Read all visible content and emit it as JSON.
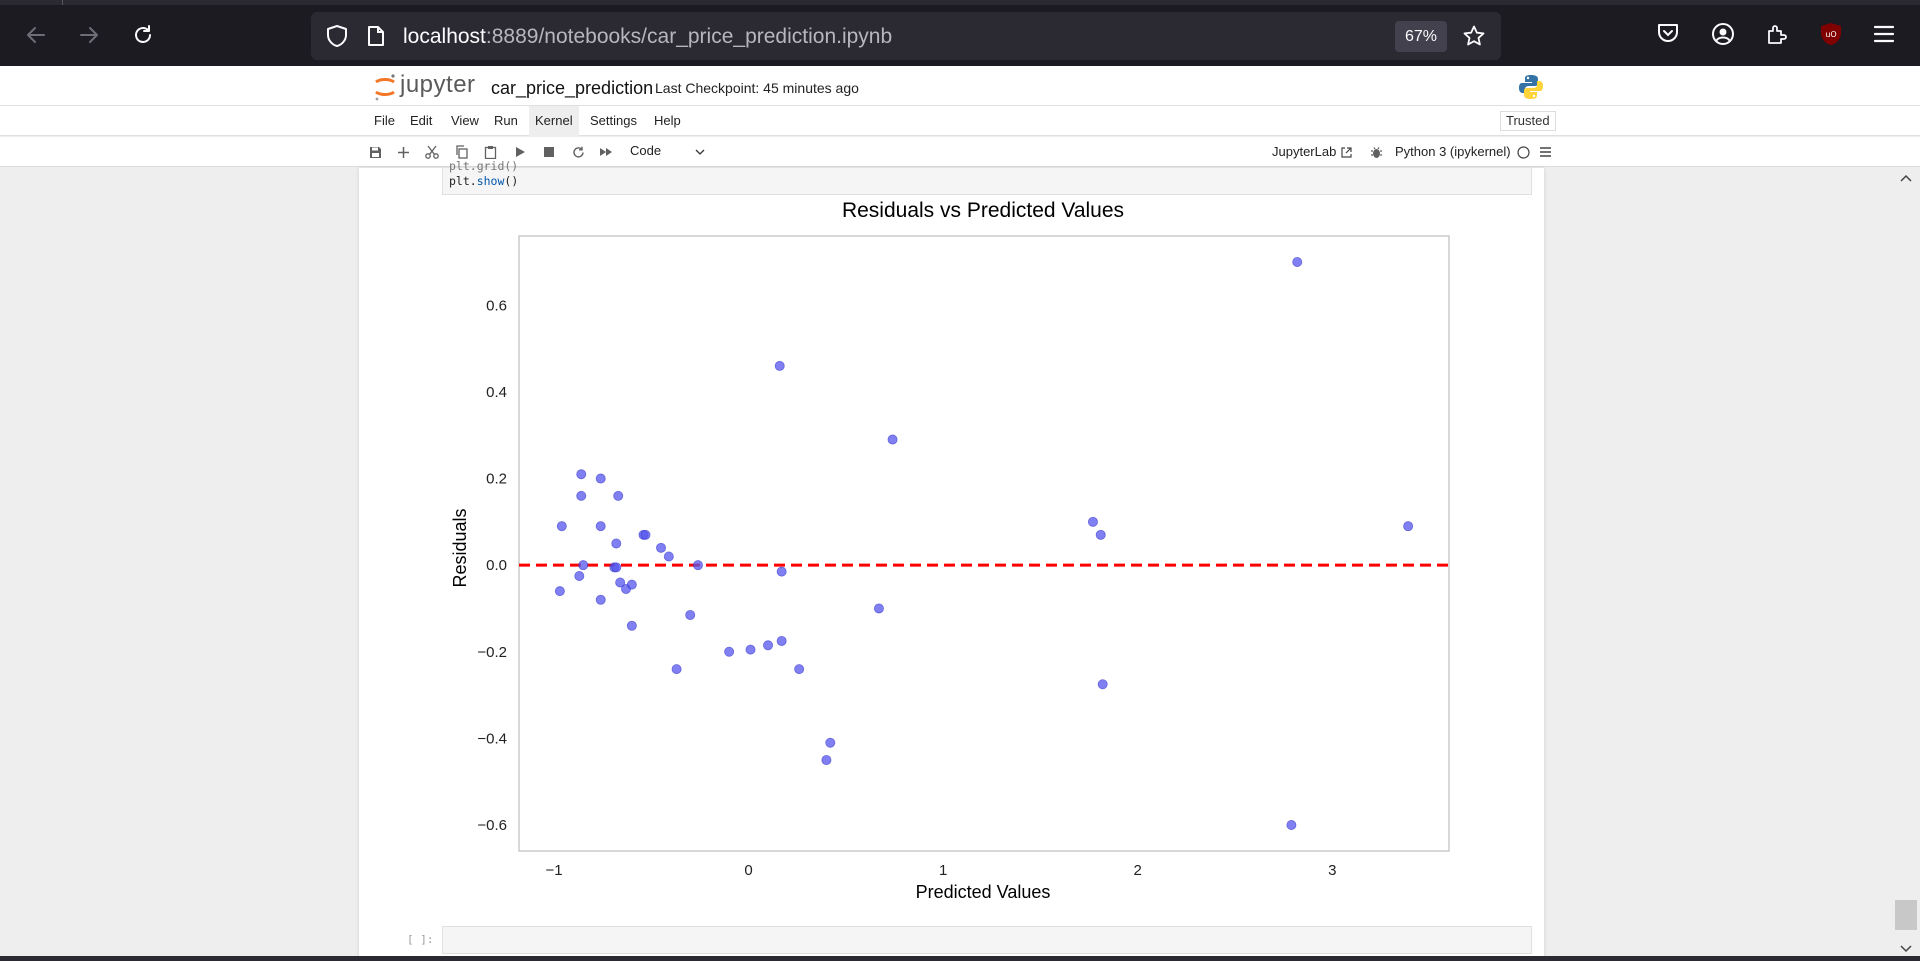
{
  "browser": {
    "url_host": "localhost",
    "url_path": ":8889/notebooks/car_price_prediction.ipynb",
    "zoom": "67%"
  },
  "jupyter": {
    "logo_text": "jupyter",
    "notebook_title": "car_price_prediction",
    "checkpoint": "Last Checkpoint: 45 minutes ago",
    "menu": [
      "File",
      "Edit",
      "View",
      "Run",
      "Kernel",
      "Settings",
      "Help"
    ],
    "active_menu": "Kernel",
    "trusted": "Trusted",
    "cell_type": "Code",
    "jupyterlab_link": "JupyterLab",
    "kernel_name": "Python 3 (ipykernel)"
  },
  "code": {
    "line_partial": "plt.grid()",
    "line_last_obj": "plt.",
    "line_last_fn": "show",
    "line_last_end": "()"
  },
  "empty_prompt": "[ ]:",
  "chart_data": {
    "type": "scatter",
    "title": "Residuals vs Predicted Values",
    "xlabel": "Predicted Values",
    "ylabel": "Residuals",
    "xlim": [
      -1.18,
      3.6
    ],
    "ylim": [
      -0.66,
      0.76
    ],
    "xticks": [
      -1,
      0,
      1,
      2,
      3
    ],
    "yticks": [
      -0.6,
      -0.4,
      -0.2,
      0.0,
      0.2,
      0.4,
      0.6
    ],
    "grid": false,
    "reference_line": {
      "y": 0.0,
      "color": "#ff0000",
      "style": "dashed"
    },
    "point_color": "#5555ee",
    "points": [
      {
        "x": -0.96,
        "y": 0.09
      },
      {
        "x": -0.97,
        "y": -0.06
      },
      {
        "x": -0.86,
        "y": 0.21
      },
      {
        "x": -0.86,
        "y": 0.16
      },
      {
        "x": -0.87,
        "y": -0.025
      },
      {
        "x": -0.85,
        "y": 0.0
      },
      {
        "x": -0.76,
        "y": 0.2
      },
      {
        "x": -0.76,
        "y": 0.09
      },
      {
        "x": -0.76,
        "y": -0.08
      },
      {
        "x": -0.67,
        "y": 0.16
      },
      {
        "x": -0.68,
        "y": 0.05
      },
      {
        "x": -0.69,
        "y": -0.005
      },
      {
        "x": -0.68,
        "y": -0.005
      },
      {
        "x": -0.66,
        "y": -0.04
      },
      {
        "x": -0.63,
        "y": -0.055
      },
      {
        "x": -0.6,
        "y": -0.045
      },
      {
        "x": -0.6,
        "y": -0.14
      },
      {
        "x": -0.54,
        "y": 0.07
      },
      {
        "x": -0.53,
        "y": 0.07
      },
      {
        "x": -0.45,
        "y": 0.04
      },
      {
        "x": -0.41,
        "y": 0.02
      },
      {
        "x": -0.37,
        "y": -0.24
      },
      {
        "x": -0.3,
        "y": -0.115
      },
      {
        "x": -0.26,
        "y": 0.0
      },
      {
        "x": -0.1,
        "y": -0.2
      },
      {
        "x": 0.01,
        "y": -0.195
      },
      {
        "x": 0.1,
        "y": -0.185
      },
      {
        "x": 0.16,
        "y": 0.46
      },
      {
        "x": 0.17,
        "y": -0.015
      },
      {
        "x": 0.17,
        "y": -0.175
      },
      {
        "x": 0.26,
        "y": -0.24
      },
      {
        "x": 0.4,
        "y": -0.45
      },
      {
        "x": 0.42,
        "y": -0.41
      },
      {
        "x": 0.67,
        "y": -0.1
      },
      {
        "x": 0.74,
        "y": 0.29
      },
      {
        "x": 1.77,
        "y": 0.1
      },
      {
        "x": 1.81,
        "y": 0.07
      },
      {
        "x": 1.82,
        "y": -0.275
      },
      {
        "x": 2.79,
        "y": -0.6
      },
      {
        "x": 2.82,
        "y": 0.7
      },
      {
        "x": 3.39,
        "y": 0.09
      }
    ]
  }
}
